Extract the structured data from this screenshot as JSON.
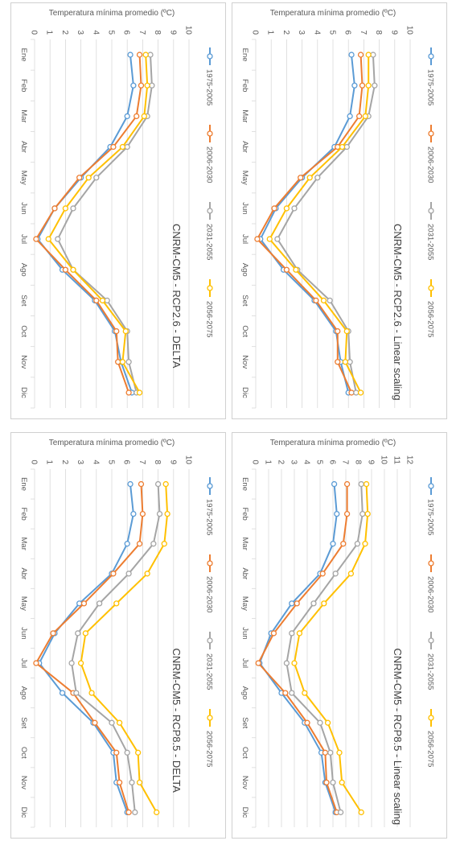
{
  "chart_data": [
    {
      "type": "line",
      "title": "CNRM-CM5 - RCP2.6 - DELTA",
      "ylabel": "Temperatura mínima promedio (ºC)",
      "xlabel": "",
      "ylim": [
        0,
        10
      ],
      "yticks": [
        "0",
        "1",
        "2",
        "3",
        "4",
        "5",
        "6",
        "7",
        "8",
        "9",
        "10"
      ],
      "grid": true,
      "legend_position": "top",
      "categories": [
        "Ene",
        "Feb",
        "Mar",
        "Abr",
        "May",
        "Jun",
        "Jul",
        "Ago",
        "Set",
        "Oct",
        "Nov",
        "Dic"
      ],
      "series": [
        {
          "name": "1975-2005",
          "color": "#5b9bd5",
          "values": [
            6.2,
            6.4,
            6.0,
            4.9,
            3.0,
            1.3,
            0.2,
            1.8,
            3.9,
            5.2,
            5.6,
            6.3
          ]
        },
        {
          "name": "2006-2030",
          "color": "#ed7d31",
          "values": [
            6.8,
            6.9,
            6.6,
            5.1,
            2.9,
            1.3,
            0.1,
            2.0,
            4.0,
            5.3,
            5.4,
            6.1
          ]
        },
        {
          "name": "2031-2055",
          "color": "#a5a5a5",
          "values": [
            7.5,
            7.6,
            7.3,
            6.0,
            4.0,
            2.5,
            1.5,
            2.5,
            4.7,
            6.0,
            6.1,
            6.6
          ]
        },
        {
          "name": "2056-2075",
          "color": "#ffc000",
          "values": [
            7.2,
            7.3,
            7.1,
            5.7,
            3.5,
            2.0,
            0.9,
            2.5,
            4.4,
            5.9,
            5.7,
            6.8
          ]
        }
      ]
    },
    {
      "type": "line",
      "title": "CNRM-CM5 - RCP2.6 - Linear scaling",
      "ylabel": "Temperatura mínima promedio (ºC)",
      "xlabel": "",
      "ylim": [
        0,
        10
      ],
      "yticks": [
        "0",
        "1",
        "2",
        "3",
        "4",
        "5",
        "6",
        "7",
        "8",
        "9",
        "10"
      ],
      "grid": true,
      "legend_position": "top",
      "categories": [
        "Ene",
        "Feb",
        "Mar",
        "Abr",
        "May",
        "Jun",
        "Jul",
        "Ago",
        "Set",
        "Oct",
        "Nov",
        "Dic"
      ],
      "series": [
        {
          "name": "1975-2005",
          "color": "#5b9bd5",
          "values": [
            6.2,
            6.4,
            6.1,
            5.1,
            3.0,
            1.3,
            0.3,
            1.8,
            3.8,
            5.2,
            5.5,
            6.0
          ]
        },
        {
          "name": "2006-2030",
          "color": "#ed7d31",
          "values": [
            6.8,
            6.9,
            6.7,
            5.3,
            2.9,
            1.2,
            0.1,
            2.0,
            3.9,
            5.3,
            5.3,
            6.2
          ]
        },
        {
          "name": "2031-2055",
          "color": "#a5a5a5",
          "values": [
            7.6,
            7.7,
            7.3,
            5.9,
            4.0,
            2.5,
            1.4,
            2.7,
            4.8,
            6.0,
            6.1,
            6.5
          ]
        },
        {
          "name": "2056-2075",
          "color": "#ffc000",
          "values": [
            7.3,
            7.3,
            7.1,
            5.6,
            3.5,
            2.0,
            0.9,
            2.6,
            4.4,
            5.9,
            5.8,
            6.8
          ]
        }
      ]
    },
    {
      "type": "line",
      "title": "CNRM-CM5 - RCP8.5 - DELTA",
      "ylabel": "Temperatura mínima promedio (ºC)",
      "xlabel": "",
      "ylim": [
        0,
        10
      ],
      "yticks": [
        "0",
        "1",
        "2",
        "3",
        "4",
        "5",
        "6",
        "7",
        "8",
        "9",
        "10"
      ],
      "grid": true,
      "legend_position": "top",
      "categories": [
        "Ene",
        "Feb",
        "Mar",
        "Abr",
        "May",
        "Jun",
        "Jul",
        "Ago",
        "Set",
        "Oct",
        "Nov",
        "Dic"
      ],
      "series": [
        {
          "name": "1975-2005",
          "color": "#5b9bd5",
          "values": [
            6.2,
            6.4,
            6.0,
            5.0,
            2.9,
            1.3,
            0.3,
            1.8,
            3.8,
            5.1,
            5.3,
            6.0
          ]
        },
        {
          "name": "2006-2030",
          "color": "#ed7d31",
          "values": [
            6.9,
            7.0,
            6.8,
            5.1,
            3.2,
            1.2,
            0.1,
            2.5,
            3.9,
            5.3,
            5.5,
            6.1
          ]
        },
        {
          "name": "2031-2055",
          "color": "#a5a5a5",
          "values": [
            8.0,
            8.1,
            7.7,
            6.1,
            4.2,
            2.8,
            2.4,
            2.7,
            5.0,
            6.0,
            6.3,
            6.5
          ]
        },
        {
          "name": "2056-2075",
          "color": "#ffc000",
          "values": [
            8.5,
            8.6,
            8.4,
            7.3,
            5.3,
            3.3,
            3.0,
            3.7,
            5.5,
            6.7,
            6.8,
            7.9
          ]
        }
      ]
    },
    {
      "type": "line",
      "title": "CNRM-CM5 - RCP8.5 - Linear scaling",
      "ylabel": "Temperatura mínima promedio (ºC)",
      "xlabel": "",
      "ylim": [
        0,
        12
      ],
      "yticks": [
        "0",
        "1",
        "2",
        "3",
        "4",
        "5",
        "6",
        "7",
        "8",
        "9",
        "10",
        "11",
        "12"
      ],
      "grid": true,
      "legend_position": "top",
      "categories": [
        "Ene",
        "Feb",
        "Mar",
        "Abr",
        "May",
        "Jun",
        "Jul",
        "Ago",
        "Set",
        "Oct",
        "Nov",
        "Dic"
      ],
      "series": [
        {
          "name": "1975-2005",
          "color": "#5b9bd5",
          "values": [
            6.1,
            6.3,
            6.0,
            5.0,
            2.8,
            1.2,
            0.3,
            2.0,
            3.8,
            5.1,
            5.4,
            6.2
          ]
        },
        {
          "name": "2006-2030",
          "color": "#ed7d31",
          "values": [
            7.1,
            7.1,
            6.8,
            5.2,
            3.2,
            1.4,
            0.2,
            2.3,
            4.0,
            5.4,
            5.5,
            6.3
          ]
        },
        {
          "name": "2031-2055",
          "color": "#a5a5a5",
          "values": [
            8.2,
            8.3,
            7.9,
            6.2,
            4.5,
            2.8,
            2.4,
            2.8,
            5.0,
            5.8,
            6.0,
            6.6
          ]
        },
        {
          "name": "2056-2075",
          "color": "#ffc000",
          "values": [
            8.6,
            8.7,
            8.5,
            7.4,
            5.3,
            3.4,
            3.0,
            3.8,
            5.6,
            6.5,
            6.7,
            8.2
          ]
        }
      ]
    }
  ]
}
